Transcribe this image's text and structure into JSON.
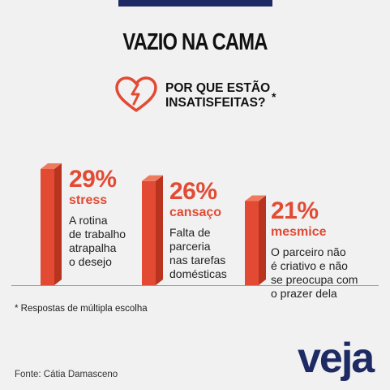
{
  "title": "VAZIO NA CAMA",
  "question": {
    "line1": "POR QUE ESTÃO",
    "line2": "INSATISFEITAS?",
    "asterisk": "*"
  },
  "colors": {
    "accent": "#e24a33",
    "navy": "#1e2a63"
  },
  "icon": "broken-heart-icon",
  "chart_data": {
    "type": "bar",
    "categories": [
      "stress",
      "cansaço",
      "mesmice"
    ],
    "values": [
      29,
      26,
      21
    ],
    "value_labels": [
      "29%",
      "26%",
      "21%"
    ],
    "descriptions": [
      [
        "A rotina",
        "de trabalho",
        "atrapalha",
        "o desejo"
      ],
      [
        "Falta de",
        "parceria",
        "nas tarefas",
        "domésticas"
      ],
      [
        "O parceiro não",
        "é criativo e não",
        "se preocupa com",
        "o prazer dela"
      ]
    ],
    "ylim": [
      0,
      29
    ]
  },
  "note": "* Respostas de múltipla escolha",
  "source": "Fonte: Cátia Damasceno",
  "logo": "veja"
}
